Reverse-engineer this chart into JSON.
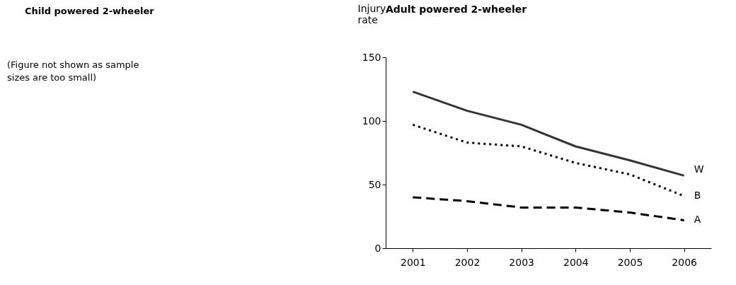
{
  "chart_data": [
    {
      "type": "other",
      "title": "Child powered 2-wheeler",
      "annotations": [
        "(Figure not shown as sample",
        "sizes are too small)"
      ]
    },
    {
      "type": "line",
      "title": "Adult powered 2-wheeler",
      "ylabel": "Injury rate",
      "categories": [
        "2001",
        "2002",
        "2003",
        "2004",
        "2005",
        "2006"
      ],
      "ylim": [
        0,
        150
      ],
      "yticks": [
        0,
        50,
        100,
        150
      ],
      "grid": false,
      "series": [
        {
          "name": "W",
          "color": "#333333",
          "line_style": "solid",
          "values": [
            123,
            108,
            97,
            80,
            69,
            57
          ]
        },
        {
          "name": "B",
          "color": "#000000",
          "line_style": "dotted",
          "values": [
            97,
            83,
            80,
            67,
            58,
            41
          ]
        },
        {
          "name": "A",
          "color": "#000000",
          "line_style": "dashed",
          "values": [
            40,
            37,
            32,
            32,
            28,
            22
          ]
        }
      ]
    }
  ]
}
